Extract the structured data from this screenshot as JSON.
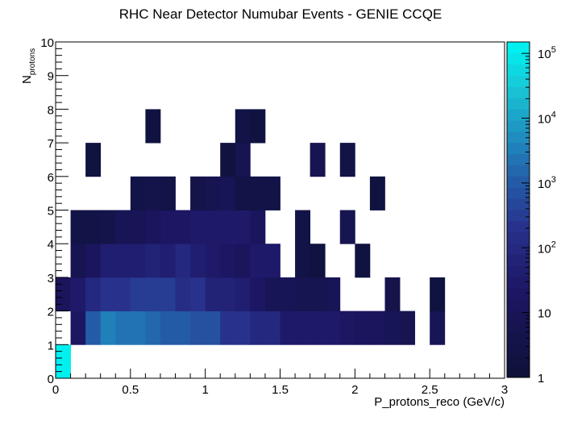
{
  "chart_data": {
    "type": "heatmap",
    "title": "RHC Near Detector Numubar Events - GENIE CCQE",
    "xlabel": "P_protons_reco (GeV/c)",
    "ylabel_main": "N",
    "ylabel_sub": "protons",
    "xlim": [
      0,
      3
    ],
    "ylim": [
      0,
      10
    ],
    "x_bin_width": 0.1,
    "y_bin_width": 1,
    "x_ticks": [
      "0",
      "0.5",
      "1",
      "1.5",
      "2",
      "2.5",
      "3"
    ],
    "y_ticks": [
      "0",
      "1",
      "2",
      "3",
      "4",
      "5",
      "6",
      "7",
      "8",
      "9",
      "10"
    ],
    "z_scale": "log",
    "z_range": [
      1,
      150000
    ],
    "colorbar_labels": [
      {
        "value": 1,
        "base": "1",
        "exp": ""
      },
      {
        "value": 10,
        "base": "10",
        "exp": ""
      },
      {
        "value": 100,
        "base": "10",
        "exp": "2"
      },
      {
        "value": 1000,
        "base": "10",
        "exp": "3"
      },
      {
        "value": 10000,
        "base": "10",
        "exp": "4"
      },
      {
        "value": 100000,
        "base": "10",
        "exp": "5"
      }
    ],
    "cells": [
      {
        "x": 0.0,
        "y": 0,
        "z": 150000
      },
      {
        "x": 0.1,
        "y": 1,
        "z": 20
      },
      {
        "x": 0.2,
        "y": 1,
        "z": 1200
      },
      {
        "x": 0.3,
        "y": 1,
        "z": 3000
      },
      {
        "x": 0.4,
        "y": 1,
        "z": 2800
      },
      {
        "x": 0.5,
        "y": 1,
        "z": 2500
      },
      {
        "x": 0.6,
        "y": 1,
        "z": 1500
      },
      {
        "x": 0.7,
        "y": 1,
        "z": 1200
      },
      {
        "x": 0.8,
        "y": 1,
        "z": 1000
      },
      {
        "x": 0.9,
        "y": 1,
        "z": 700
      },
      {
        "x": 1.0,
        "y": 1,
        "z": 600
      },
      {
        "x": 1.1,
        "y": 1,
        "z": 200
      },
      {
        "x": 1.2,
        "y": 1,
        "z": 180
      },
      {
        "x": 1.3,
        "y": 1,
        "z": 100
      },
      {
        "x": 1.4,
        "y": 1,
        "z": 80
      },
      {
        "x": 1.5,
        "y": 1,
        "z": 30
      },
      {
        "x": 1.6,
        "y": 1,
        "z": 30
      },
      {
        "x": 1.7,
        "y": 1,
        "z": 25
      },
      {
        "x": 1.8,
        "y": 1,
        "z": 25
      },
      {
        "x": 1.9,
        "y": 1,
        "z": 20
      },
      {
        "x": 2.0,
        "y": 1,
        "z": 15
      },
      {
        "x": 2.1,
        "y": 1,
        "z": 12
      },
      {
        "x": 2.2,
        "y": 1,
        "z": 8
      },
      {
        "x": 2.3,
        "y": 1,
        "z": 6
      },
      {
        "x": 2.5,
        "y": 1,
        "z": 10
      },
      {
        "x": 0.0,
        "y": 2,
        "z": 12
      },
      {
        "x": 0.1,
        "y": 2,
        "z": 25
      },
      {
        "x": 0.2,
        "y": 2,
        "z": 80
      },
      {
        "x": 0.3,
        "y": 2,
        "z": 200
      },
      {
        "x": 0.4,
        "y": 2,
        "z": 200
      },
      {
        "x": 0.5,
        "y": 2,
        "z": 300
      },
      {
        "x": 0.6,
        "y": 2,
        "z": 300
      },
      {
        "x": 0.7,
        "y": 2,
        "z": 300
      },
      {
        "x": 0.8,
        "y": 2,
        "z": 150
      },
      {
        "x": 0.9,
        "y": 2,
        "z": 200
      },
      {
        "x": 1.0,
        "y": 2,
        "z": 60
      },
      {
        "x": 1.1,
        "y": 2,
        "z": 60
      },
      {
        "x": 1.2,
        "y": 2,
        "z": 40
      },
      {
        "x": 1.3,
        "y": 2,
        "z": 20
      },
      {
        "x": 1.4,
        "y": 2,
        "z": 10
      },
      {
        "x": 1.5,
        "y": 2,
        "z": 8
      },
      {
        "x": 1.6,
        "y": 2,
        "z": 6
      },
      {
        "x": 1.7,
        "y": 2,
        "z": 6
      },
      {
        "x": 1.8,
        "y": 2,
        "z": 8
      },
      {
        "x": 2.2,
        "y": 2,
        "z": 4
      },
      {
        "x": 2.5,
        "y": 2,
        "z": 2
      },
      {
        "x": 0.1,
        "y": 3,
        "z": 6
      },
      {
        "x": 0.2,
        "y": 3,
        "z": 15
      },
      {
        "x": 0.3,
        "y": 3,
        "z": 50
      },
      {
        "x": 0.4,
        "y": 3,
        "z": 50
      },
      {
        "x": 0.5,
        "y": 3,
        "z": 50
      },
      {
        "x": 0.6,
        "y": 3,
        "z": 60
      },
      {
        "x": 0.7,
        "y": 3,
        "z": 50
      },
      {
        "x": 0.8,
        "y": 3,
        "z": 100
      },
      {
        "x": 0.9,
        "y": 3,
        "z": 40
      },
      {
        "x": 1.0,
        "y": 3,
        "z": 30
      },
      {
        "x": 1.1,
        "y": 3,
        "z": 20
      },
      {
        "x": 1.2,
        "y": 3,
        "z": 15
      },
      {
        "x": 1.3,
        "y": 3,
        "z": 30
      },
      {
        "x": 1.4,
        "y": 3,
        "z": 30
      },
      {
        "x": 1.6,
        "y": 3,
        "z": 3
      },
      {
        "x": 1.7,
        "y": 3,
        "z": 2
      },
      {
        "x": 2.0,
        "y": 3,
        "z": 2
      },
      {
        "x": 0.1,
        "y": 4,
        "z": 3
      },
      {
        "x": 0.2,
        "y": 4,
        "z": 3
      },
      {
        "x": 0.3,
        "y": 4,
        "z": 4
      },
      {
        "x": 0.4,
        "y": 4,
        "z": 8
      },
      {
        "x": 0.5,
        "y": 4,
        "z": 10
      },
      {
        "x": 0.6,
        "y": 4,
        "z": 15
      },
      {
        "x": 0.7,
        "y": 4,
        "z": 20
      },
      {
        "x": 0.8,
        "y": 4,
        "z": 20
      },
      {
        "x": 0.9,
        "y": 4,
        "z": 25
      },
      {
        "x": 1.0,
        "y": 4,
        "z": 25
      },
      {
        "x": 1.1,
        "y": 4,
        "z": 25
      },
      {
        "x": 1.2,
        "y": 4,
        "z": 25
      },
      {
        "x": 1.3,
        "y": 4,
        "z": 12
      },
      {
        "x": 1.6,
        "y": 4,
        "z": 3
      },
      {
        "x": 1.9,
        "y": 4,
        "z": 6
      },
      {
        "x": 0.5,
        "y": 5,
        "z": 3
      },
      {
        "x": 0.6,
        "y": 5,
        "z": 4
      },
      {
        "x": 0.7,
        "y": 5,
        "z": 3
      },
      {
        "x": 0.9,
        "y": 5,
        "z": 4
      },
      {
        "x": 1.0,
        "y": 5,
        "z": 6
      },
      {
        "x": 1.1,
        "y": 5,
        "z": 8
      },
      {
        "x": 1.2,
        "y": 5,
        "z": 3
      },
      {
        "x": 1.3,
        "y": 5,
        "z": 3
      },
      {
        "x": 1.4,
        "y": 5,
        "z": 3
      },
      {
        "x": 2.1,
        "y": 5,
        "z": 2
      },
      {
        "x": 0.2,
        "y": 6,
        "z": 2
      },
      {
        "x": 1.1,
        "y": 6,
        "z": 2
      },
      {
        "x": 1.2,
        "y": 6,
        "z": 5
      },
      {
        "x": 1.7,
        "y": 6,
        "z": 6
      },
      {
        "x": 1.9,
        "y": 6,
        "z": 3
      },
      {
        "x": 0.6,
        "y": 7,
        "z": 2
      },
      {
        "x": 1.2,
        "y": 7,
        "z": 3
      },
      {
        "x": 1.3,
        "y": 7,
        "z": 2
      }
    ]
  }
}
